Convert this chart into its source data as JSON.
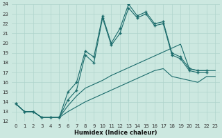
{
  "xlabel": "Humidex (Indice chaleur)",
  "bg_color": "#cce8e0",
  "line_color": "#1a6b6b",
  "grid_color": "#b0d4cc",
  "xlim": [
    -0.5,
    23.5
  ],
  "ylim": [
    12,
    24
  ],
  "xticks": [
    0,
    1,
    2,
    3,
    4,
    5,
    6,
    7,
    8,
    9,
    10,
    11,
    12,
    13,
    14,
    15,
    16,
    17,
    18,
    19,
    20,
    21,
    22,
    23
  ],
  "yticks": [
    12,
    13,
    14,
    15,
    16,
    17,
    18,
    19,
    20,
    21,
    22,
    23,
    24
  ],
  "series": [
    {
      "x": [
        0,
        1,
        2,
        3,
        4,
        5,
        6,
        7,
        8,
        9,
        10,
        11,
        12,
        13,
        14,
        15,
        16,
        17,
        18,
        19,
        20,
        21,
        22
      ],
      "y": [
        13.8,
        13.0,
        13.0,
        12.4,
        12.4,
        12.4,
        15.0,
        16.0,
        19.2,
        18.6,
        22.8,
        20.0,
        21.5,
        24.0,
        22.8,
        23.2,
        22.0,
        22.2,
        19.0,
        18.6,
        17.4,
        17.2,
        17.2
      ]
    },
    {
      "x": [
        0,
        1,
        2,
        3,
        4,
        5,
        6,
        7,
        8,
        9,
        10,
        11,
        12,
        13,
        14,
        15,
        16,
        17,
        18,
        19,
        20,
        21,
        22
      ],
      "y": [
        13.8,
        13.0,
        13.0,
        12.4,
        12.4,
        12.4,
        14.2,
        15.2,
        18.8,
        18.0,
        22.6,
        19.8,
        21.0,
        23.6,
        22.6,
        23.0,
        21.8,
        22.0,
        18.8,
        18.4,
        17.2,
        17.0,
        17.0
      ]
    },
    {
      "x": [
        0,
        1,
        2,
        3,
        4,
        5,
        6,
        7,
        8,
        9,
        10,
        11,
        12,
        13,
        14,
        15,
        16,
        17,
        18,
        19,
        20,
        21,
        22,
        23
      ],
      "y": [
        13.8,
        13.0,
        13.0,
        12.4,
        12.4,
        12.4,
        13.6,
        14.6,
        15.4,
        15.8,
        16.2,
        16.7,
        17.1,
        17.5,
        17.9,
        18.3,
        18.7,
        19.1,
        19.5,
        19.9,
        17.4,
        17.2,
        17.2,
        17.2
      ]
    },
    {
      "x": [
        0,
        1,
        2,
        3,
        4,
        5,
        6,
        7,
        8,
        9,
        10,
        11,
        12,
        13,
        14,
        15,
        16,
        17,
        18,
        19,
        20,
        21,
        22,
        23
      ],
      "y": [
        13.8,
        13.0,
        13.0,
        12.4,
        12.4,
        12.4,
        13.0,
        13.5,
        14.0,
        14.4,
        14.8,
        15.2,
        15.6,
        16.0,
        16.4,
        16.8,
        17.2,
        17.4,
        16.6,
        16.4,
        16.2,
        16.0,
        16.6,
        16.6
      ]
    }
  ]
}
